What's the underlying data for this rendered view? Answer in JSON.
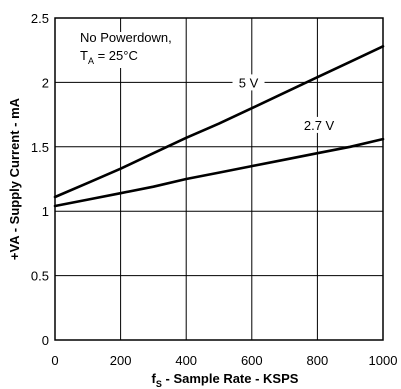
{
  "chart_data": {
    "type": "line",
    "title": "",
    "xlabel_main": "f",
    "xlabel_sub": "S",
    "xlabel_rest": " - Sample Rate - KSPS",
    "ylabel": "+VA - Supply Current - mA",
    "xlim": [
      0,
      1000
    ],
    "ylim": [
      0,
      2.5
    ],
    "xticks": [
      "0",
      "200",
      "400",
      "600",
      "800",
      "1000"
    ],
    "yticks": [
      "0",
      "0.5",
      "1",
      "1.5",
      "2",
      "2.5"
    ],
    "grid": true,
    "annotation": {
      "line1": "No Powerdown,",
      "line2_main": "T",
      "line2_sub": "A",
      "line2_rest": " = 25°C"
    },
    "series": [
      {
        "name": "5 V",
        "x": [
          0,
          100,
          200,
          300,
          400,
          500,
          600,
          700,
          800,
          900,
          1000
        ],
        "y": [
          1.11,
          1.22,
          1.33,
          1.45,
          1.57,
          1.68,
          1.8,
          1.92,
          2.04,
          2.16,
          2.28
        ]
      },
      {
        "name": "2.7 V",
        "x": [
          0,
          100,
          200,
          300,
          400,
          500,
          600,
          700,
          800,
          900,
          1000
        ],
        "y": [
          1.04,
          1.09,
          1.14,
          1.19,
          1.25,
          1.3,
          1.35,
          1.4,
          1.45,
          1.5,
          1.56
        ]
      }
    ]
  }
}
